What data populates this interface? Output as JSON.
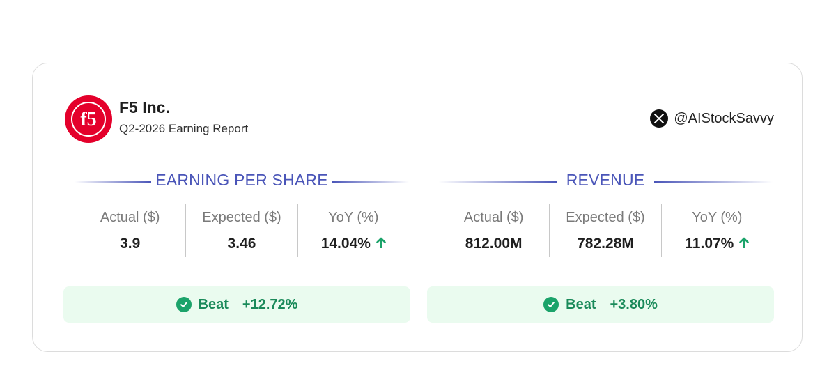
{
  "company": {
    "name": "F5 Inc.",
    "report": "Q2-2026 Earning Report",
    "logo_text": "f5"
  },
  "social": {
    "icon": "x-logo-icon",
    "handle": "@AIStockSavvy"
  },
  "eps": {
    "title": "EARNING PER SHARE",
    "actual_label": "Actual ($)",
    "actual_value": "3.9",
    "expected_label": "Expected ($)",
    "expected_value": "3.46",
    "yoy_label": "YoY (%)",
    "yoy_value": "14.04%",
    "beat_label": "Beat",
    "beat_pct": "+12.72%"
  },
  "revenue": {
    "title": "REVENUE",
    "actual_label": "Actual ($)",
    "actual_value": "812.00M",
    "expected_label": "Expected ($)",
    "expected_value": "782.28M",
    "yoy_label": "YoY (%)",
    "yoy_value": "11.07%",
    "beat_label": "Beat",
    "beat_pct": "+3.80%"
  },
  "colors": {
    "brand_red": "#e4002b",
    "accent_blue": "#4a55b8",
    "positive_green": "#1ba36a",
    "beat_bg": "#eafbef"
  }
}
